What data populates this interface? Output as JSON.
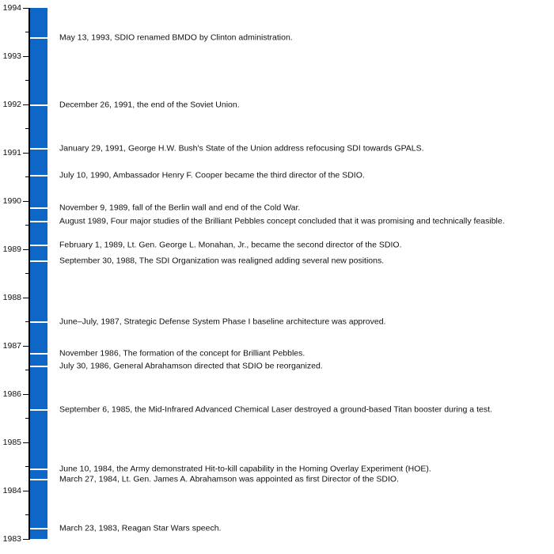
{
  "chart_data": {
    "type": "timeline",
    "orientation": "vertical",
    "title": "",
    "xlabel": "",
    "ylabel": "",
    "axis": {
      "top_year": 1994,
      "bottom_year": 1983,
      "year_tick_labels": [
        "1994",
        "1993",
        "1992",
        "1991",
        "1990",
        "1989",
        "1988",
        "1987",
        "1986",
        "1985",
        "1984",
        "1983"
      ],
      "minor_tick_interval_years": 0.5,
      "grid": "off",
      "legend": "none"
    },
    "colors": {
      "bar": "#0e66c6",
      "event_marker": "#ffffff",
      "axis": "#000000",
      "text": "#111111"
    },
    "events": [
      {
        "year_value": 1993.37,
        "label": "May 13, 1993, SDIO renamed BMDO by Clinton administration."
      },
      {
        "year_value": 1991.98,
        "label": "December 26, 1991, the end of the Soviet Union."
      },
      {
        "year_value": 1991.08,
        "label": "January 29, 1991, George H.W. Bush's State of the Union address refocusing SDI towards GPALS."
      },
      {
        "year_value": 1990.52,
        "label": "July 10, 1990, Ambassador Henry F. Cooper became the third director of the SDIO."
      },
      {
        "year_value": 1989.86,
        "label": "November 9, 1989, fall of the Berlin wall and end of the Cold War."
      },
      {
        "year_value": 1989.58,
        "label": "August 1989, Four major studies of the Brilliant Pebbles concept concluded that it was promising and technically feasible."
      },
      {
        "year_value": 1989.09,
        "label": "February 1, 1989, Lt. Gen. George L. Monahan, Jr., became the second director of the SDIO."
      },
      {
        "year_value": 1988.75,
        "label": "September 30, 1988, The SDI Organization was realigned adding several new positions."
      },
      {
        "year_value": 1987.5,
        "label": "June–July, 1987, Strategic Defense System Phase I baseline architecture was approved."
      },
      {
        "year_value": 1986.84,
        "label": "November 1986, The formation of the concept for Brilliant Pebbles."
      },
      {
        "year_value": 1986.58,
        "label": "July 30, 1986, General Abrahamson directed that SDIO be reorganized."
      },
      {
        "year_value": 1985.68,
        "label": "September 6, 1985, the Mid-Infrared Advanced Chemical Laser destroyed a ground-based Titan booster during a test."
      },
      {
        "year_value": 1984.44,
        "label": "June 10, 1984, the Army demonstrated Hit-to-kill capability in the Homing Overlay Experiment (HOE)."
      },
      {
        "year_value": 1984.23,
        "label": "March 27, 1984, Lt. Gen. James A. Abrahamson was appointed as first Director of the SDIO."
      },
      {
        "year_value": 1983.22,
        "label": "March 23, 1983, Reagan Star Wars speech."
      }
    ]
  }
}
